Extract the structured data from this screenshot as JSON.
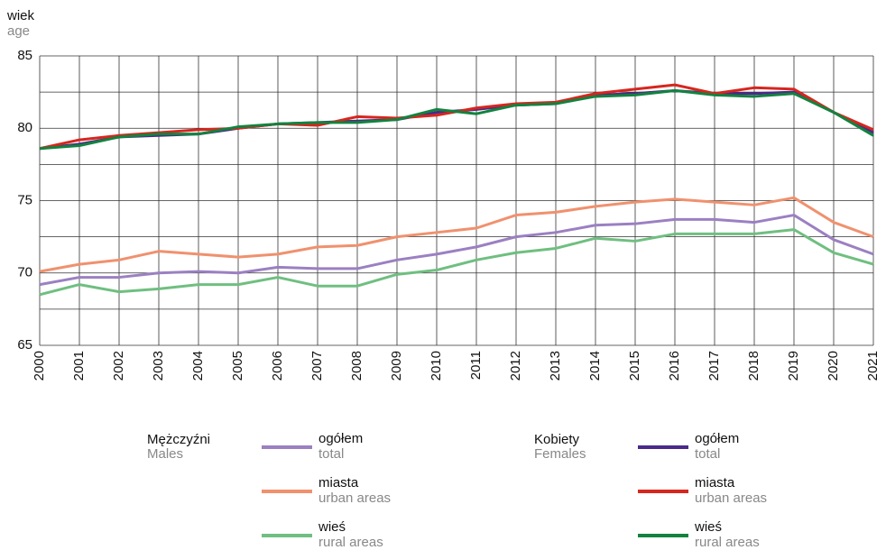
{
  "chart_data": {
    "type": "line",
    "y_label": "wiek",
    "y_label_en": "age",
    "categories": [
      "2000",
      "2001",
      "2002",
      "2003",
      "2004",
      "2005",
      "2006",
      "2007",
      "2008",
      "2009",
      "2010",
      "2011",
      "2012",
      "2013",
      "2014",
      "2015",
      "2016",
      "2017",
      "2018",
      "2019",
      "2020",
      "2021"
    ],
    "ylim": [
      65,
      85
    ],
    "yticks": [
      65,
      70,
      75,
      80,
      85
    ],
    "minor_yticks": [
      67.5,
      72.5,
      77.5,
      82.5
    ],
    "grid": true,
    "legend_groups": [
      {
        "label": "Mężczyźni",
        "label_en": "Males"
      },
      {
        "label": "Kobiety",
        "label_en": "Females"
      }
    ],
    "series": [
      {
        "name": "ogółem",
        "name_en": "total",
        "group": 0,
        "color": "#9b80c2",
        "values": [
          69.2,
          69.7,
          69.7,
          70.0,
          70.1,
          70.0,
          70.4,
          70.3,
          70.3,
          70.9,
          71.3,
          71.8,
          72.5,
          72.8,
          73.3,
          73.4,
          73.7,
          73.7,
          73.5,
          74.0,
          72.3,
          71.3
        ]
      },
      {
        "name": "miasta",
        "name_en": "urban areas",
        "group": 0,
        "color": "#f0916e",
        "values": [
          70.1,
          70.6,
          70.9,
          71.5,
          71.3,
          71.1,
          71.3,
          71.8,
          71.9,
          72.5,
          72.8,
          73.1,
          74.0,
          74.2,
          74.6,
          74.9,
          75.1,
          74.9,
          74.7,
          75.2,
          73.5,
          72.5
        ]
      },
      {
        "name": "wieś",
        "name_en": "rural areas",
        "group": 0,
        "color": "#6fbf80",
        "values": [
          68.5,
          69.2,
          68.7,
          68.9,
          69.2,
          69.2,
          69.7,
          69.1,
          69.1,
          69.9,
          70.2,
          70.9,
          71.4,
          71.7,
          72.4,
          72.2,
          72.7,
          72.7,
          72.7,
          73.0,
          71.4,
          70.6
        ]
      },
      {
        "name": "ogółem",
        "name_en": "total",
        "group": 1,
        "color": "#4a2a8a",
        "values": [
          78.6,
          78.9,
          79.4,
          79.5,
          79.6,
          80.0,
          80.3,
          80.4,
          80.5,
          80.6,
          81.1,
          81.3,
          81.6,
          81.7,
          82.3,
          82.4,
          82.6,
          82.4,
          82.4,
          82.5,
          81.1,
          79.7
        ]
      },
      {
        "name": "miasta",
        "name_en": "urban areas",
        "group": 1,
        "color": "#d7261e",
        "values": [
          78.6,
          79.2,
          79.5,
          79.7,
          79.9,
          80.0,
          80.3,
          80.2,
          80.8,
          80.7,
          80.9,
          81.4,
          81.7,
          81.8,
          82.4,
          82.7,
          83.0,
          82.4,
          82.8,
          82.7,
          81.1,
          79.9
        ]
      },
      {
        "name": "wieś",
        "name_en": "rural areas",
        "group": 1,
        "color": "#12833f",
        "values": [
          78.6,
          78.8,
          79.4,
          79.6,
          79.6,
          80.1,
          80.3,
          80.4,
          80.4,
          80.6,
          81.3,
          81.0,
          81.6,
          81.7,
          82.2,
          82.3,
          82.6,
          82.3,
          82.2,
          82.4,
          81.1,
          79.5
        ]
      }
    ]
  }
}
